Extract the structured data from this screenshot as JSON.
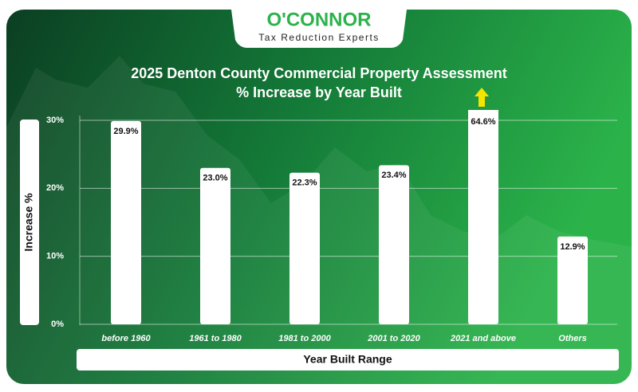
{
  "logo": {
    "name": "O'CONNOR",
    "tagline": "Tax Reduction Experts"
  },
  "chart_data": {
    "type": "bar",
    "title": "2025 Denton County Commercial Property Assessment",
    "subtitle": "% Increase by Year Built",
    "x_label": "Year Built Range",
    "y_label": "Increase %",
    "categories": [
      "before 1960",
      "1961 to 1980",
      "1981 to 2000",
      "2001 to 2020",
      "2021 and above",
      "Others"
    ],
    "values": [
      29.9,
      23.0,
      22.3,
      23.4,
      64.6,
      12.9
    ],
    "value_labels": [
      "29.9%",
      "23.0%",
      "22.3%",
      "23.4%",
      "64.6%",
      "12.9%"
    ],
    "color": "#ffffff",
    "ylim": [
      0,
      30
    ],
    "yticks": [
      {
        "value": 0,
        "label": "0%"
      },
      {
        "value": 10,
        "label": "10%"
      },
      {
        "value": 20,
        "label": "20%"
      },
      {
        "value": 30,
        "label": "30%"
      }
    ],
    "grid": true
  }
}
